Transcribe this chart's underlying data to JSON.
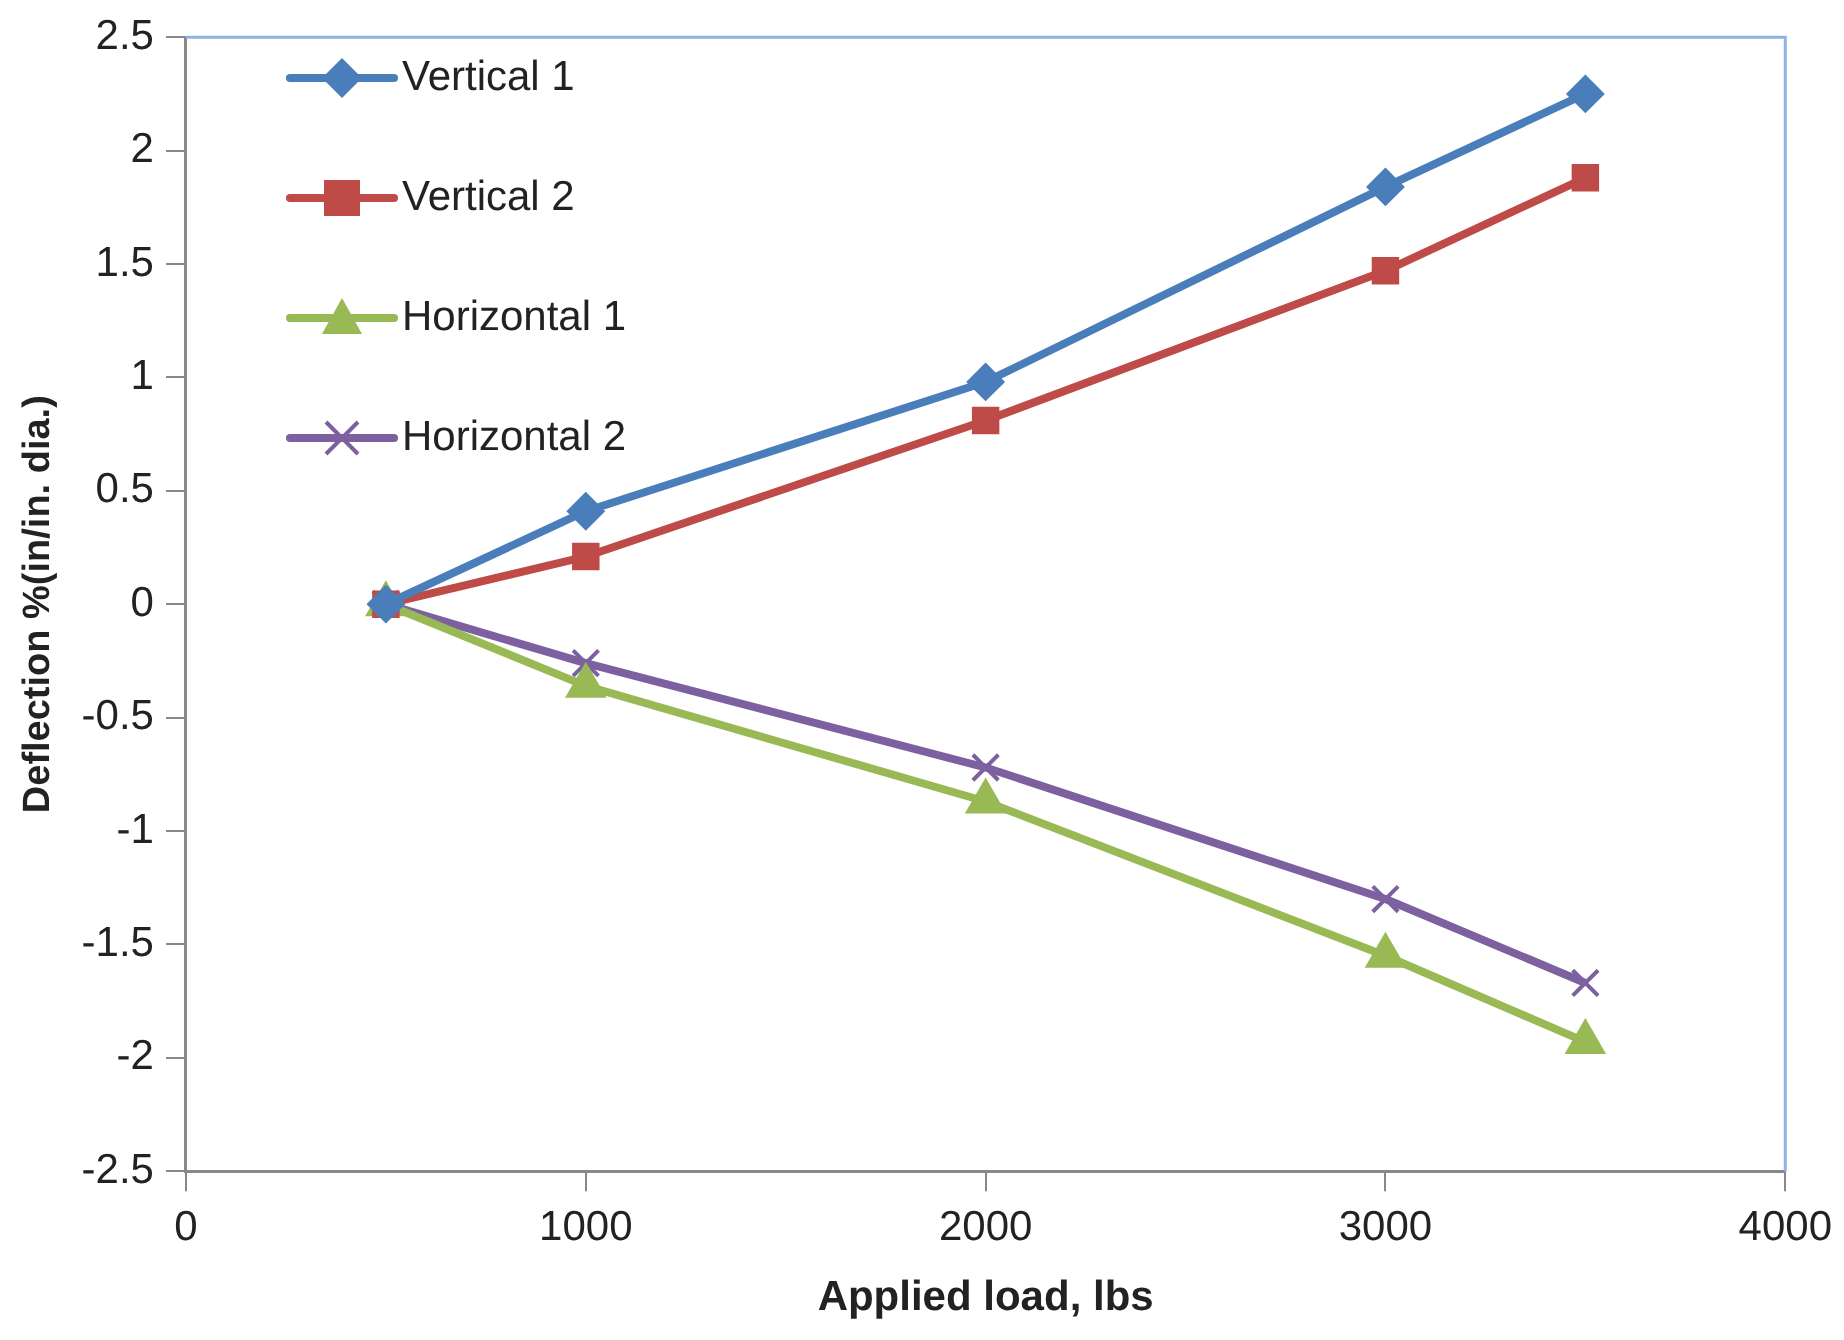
{
  "chart_data": {
    "type": "line",
    "xlabel": "Applied load, lbs",
    "ylabel": "Deflection %(in/in. dia.)",
    "x": [
      500,
      1000,
      2000,
      3000,
      3500
    ],
    "series": [
      {
        "name": "Vertical 1",
        "color": "#4a7ebb",
        "marker": "diamond",
        "values": [
          0,
          0.41,
          0.98,
          1.84,
          2.25
        ]
      },
      {
        "name": "Vertical 2",
        "color": "#be4b48",
        "marker": "square",
        "values": [
          0,
          0.21,
          0.81,
          1.47,
          1.88
        ]
      },
      {
        "name": "Horizontal 1",
        "color": "#98b954",
        "marker": "triangle",
        "values": [
          0,
          -0.36,
          -0.87,
          -1.55,
          -1.93
        ]
      },
      {
        "name": "Horizontal 2",
        "color": "#7d60a0",
        "marker": "cross",
        "values": [
          0,
          -0.26,
          -0.72,
          -1.3,
          -1.67
        ]
      }
    ],
    "xlim": [
      0,
      4000
    ],
    "xticks": [
      0,
      1000,
      2000,
      3000,
      4000
    ],
    "ylim": [
      -2.5,
      2.5
    ],
    "yticks": [
      -2.5,
      -2,
      -1.5,
      -1,
      -0.5,
      0,
      0.5,
      1,
      1.5,
      2,
      2.5
    ],
    "grid": false,
    "legend": "top left",
    "line_style": "solid"
  }
}
